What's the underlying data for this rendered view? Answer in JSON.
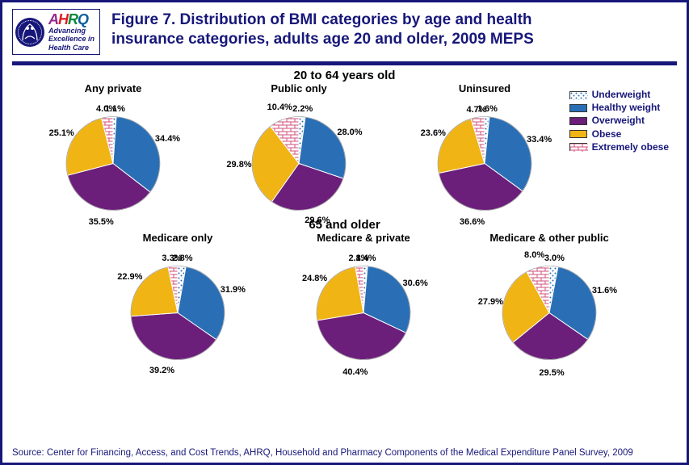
{
  "logo": {
    "ahrq": {
      "a": "A",
      "h": "H",
      "r": "R",
      "q": "Q"
    },
    "tagline1": "Advancing",
    "tagline2": "Excellence in",
    "tagline3": "Health Care"
  },
  "title": "Figure 7. Distribution of BMI categories by age and health insurance categories, adults age 20 and older, 2009 MEPS",
  "section1": "20 to 64 years old",
  "section2": "65 and older",
  "legend": {
    "items": [
      {
        "label": "Underweight",
        "fill": "dots",
        "color": "#2a6fb5"
      },
      {
        "label": "Healthy weight",
        "fill": "solid",
        "color": "#2a6fb5"
      },
      {
        "label": "Overweight",
        "fill": "solid",
        "color": "#6b1e7a"
      },
      {
        "label": "Obese",
        "fill": "solid",
        "color": "#f0b414"
      },
      {
        "label": "Extremely obese",
        "fill": "bricks",
        "color": "#d04f7a"
      }
    ]
  },
  "categories": [
    {
      "key": "underweight",
      "color": "#2a6fb5",
      "pattern": "dots"
    },
    {
      "key": "healthy",
      "color": "#2a6fb5",
      "pattern": "solid"
    },
    {
      "key": "overweight",
      "color": "#6b1e7a",
      "pattern": "solid"
    },
    {
      "key": "obese",
      "color": "#f0b414",
      "pattern": "solid"
    },
    {
      "key": "extreme",
      "color": "#d04f7a",
      "pattern": "bricks"
    }
  ],
  "charts_row1": [
    {
      "title": "Any private",
      "values": {
        "underweight": 1.1,
        "healthy": 34.4,
        "overweight": 35.5,
        "obese": 25.1,
        "extreme": 4.0
      },
      "labels": {
        "underweight": "1.1%",
        "healthy": "34.4%",
        "overweight": "35.5%",
        "obese": "25.1%",
        "extreme": "4.0%"
      }
    },
    {
      "title": "Public only",
      "values": {
        "underweight": 2.2,
        "healthy": 28.0,
        "overweight": 29.6,
        "obese": 29.8,
        "extreme": 10.4
      },
      "labels": {
        "underweight": "2.2%",
        "healthy": "28.0%",
        "overweight": "29.6%",
        "obese": "29.8%",
        "extreme": "10.4%"
      }
    },
    {
      "title": "Uninsured",
      "values": {
        "underweight": 1.6,
        "healthy": 33.4,
        "overweight": 36.6,
        "obese": 23.6,
        "extreme": 4.7
      },
      "labels": {
        "underweight": "1.6%",
        "healthy": "33.4%",
        "overweight": "36.6%",
        "obese": "23.6%",
        "extreme": "4.7%"
      }
    }
  ],
  "charts_row2": [
    {
      "title": "Medicare only",
      "values": {
        "underweight": 2.8,
        "healthy": 31.9,
        "overweight": 39.2,
        "obese": 22.9,
        "extreme": 3.3
      },
      "labels": {
        "underweight": "2.8%",
        "healthy": "31.9%",
        "overweight": "39.2%",
        "obese": "22.9%",
        "extreme": "3.3%"
      }
    },
    {
      "title": "Medicare & private",
      "values": {
        "underweight": 1.4,
        "healthy": 30.6,
        "overweight": 40.4,
        "obese": 24.8,
        "extreme": 2.8
      },
      "labels": {
        "underweight": "1.4%",
        "healthy": "30.6%",
        "overweight": "40.4%",
        "obese": "24.8%",
        "extreme": "2.8%"
      }
    },
    {
      "title": "Medicare & other public",
      "values": {
        "underweight": 3.0,
        "healthy": 31.6,
        "overweight": 29.5,
        "obese": 27.9,
        "extreme": 8.0
      },
      "labels": {
        "underweight": "3.0%",
        "healthy": "31.6%",
        "overweight": "29.5%",
        "obese": "27.9%",
        "extreme": "8.0%"
      }
    }
  ],
  "source": "Source: Center for Financing, Access, and Cost Trends, AHRQ, Household and Pharmacy Components of the Medical Expenditure Panel Survey, 2009",
  "style": {
    "pie_radius": 58,
    "label_radius": 74,
    "start_angle_deg": -90,
    "border_color": "#17177a",
    "title_color": "#17177a",
    "background": "#ffffff"
  }
}
